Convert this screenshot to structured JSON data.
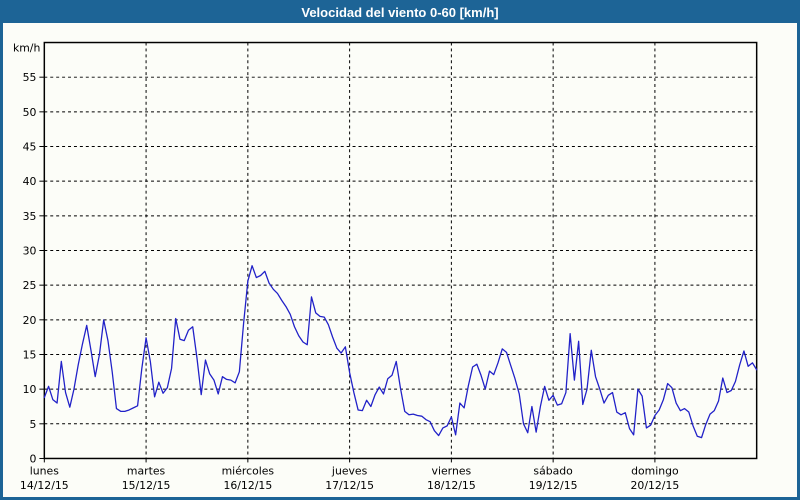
{
  "header": {
    "title": "Velocidad del viento 0-60 [km/h]"
  },
  "colors": {
    "title_bar": "#1d6496",
    "title_text": "#ffffff",
    "background": "#fcfdf8",
    "plot_border": "#000000",
    "grid": "#000000",
    "label_text": "#000000",
    "series_line": "#2121c8"
  },
  "chart_data": {
    "type": "line",
    "title": "Velocidad del viento 0-60 [km/h]",
    "ylabel": "km/h",
    "xlabel": "",
    "ylim": [
      0,
      60
    ],
    "xlim_hours": [
      0,
      168
    ],
    "grid": "dashed",
    "legend_position": "none",
    "y_ticks": [
      0,
      5,
      10,
      15,
      20,
      25,
      30,
      35,
      40,
      45,
      50,
      55
    ],
    "x_days": [
      {
        "name": "lunes",
        "date": "14/12/15"
      },
      {
        "name": "martes",
        "date": "15/12/15"
      },
      {
        "name": "miércoles",
        "date": "16/12/15"
      },
      {
        "name": "jueves",
        "date": "17/12/15"
      },
      {
        "name": "viernes",
        "date": "18/12/15"
      },
      {
        "name": "sábado",
        "date": "19/12/15"
      },
      {
        "name": "domingo",
        "date": "20/12/15"
      }
    ],
    "series": [
      {
        "name": "velocidad del viento",
        "unit": "km/h",
        "step_hours": 1,
        "values": [
          8.8,
          10.4,
          8.5,
          8.0,
          14.0,
          9.5,
          7.4,
          10.0,
          13.5,
          16.5,
          19.2,
          15.6,
          11.8,
          15.0,
          20.0,
          17.0,
          12.5,
          7.2,
          6.8,
          6.8,
          7.0,
          7.3,
          7.6,
          13.0,
          17.4,
          14.0,
          8.9,
          11.0,
          9.4,
          10.2,
          13.0,
          20.2,
          17.2,
          17.0,
          18.5,
          19.0,
          14.5,
          9.2,
          14.2,
          12.2,
          11.3,
          9.3,
          11.8,
          11.4,
          11.3,
          10.9,
          12.5,
          19.5,
          25.6,
          27.8,
          26.1,
          26.4,
          27.0,
          25.3,
          24.4,
          23.8,
          22.8,
          21.9,
          20.8,
          19.0,
          17.7,
          16.8,
          16.4,
          23.3,
          21.0,
          20.5,
          20.4,
          19.3,
          17.5,
          15.9,
          15.2,
          16.1,
          12.4,
          9.5,
          7.0,
          6.9,
          8.4,
          7.5,
          9.2,
          10.3,
          9.3,
          11.5,
          12.0,
          14.0,
          10.1,
          6.8,
          6.3,
          6.4,
          6.2,
          6.1,
          5.6,
          5.3,
          4.0,
          3.3,
          4.4,
          4.7,
          6.0,
          3.4,
          8.0,
          7.3,
          10.5,
          13.2,
          13.6,
          12.0,
          10.0,
          12.6,
          12.1,
          13.8,
          15.8,
          15.3,
          13.4,
          11.5,
          9.3,
          5.0,
          3.7,
          7.5,
          3.8,
          7.5,
          10.4,
          8.4,
          9.1,
          7.7,
          7.9,
          9.5,
          18.0,
          11.3,
          16.9,
          7.8,
          10.0,
          15.6,
          11.8,
          10.0,
          8.0,
          9.1,
          9.5,
          6.7,
          6.3,
          6.6,
          4.3,
          3.4,
          10.0,
          9.0,
          4.4,
          4.8,
          6.2,
          7.0,
          8.5,
          10.8,
          10.2,
          8.0,
          6.9,
          7.2,
          6.7,
          4.7,
          3.2,
          3.0,
          4.9,
          6.4,
          6.9,
          8.3,
          11.6,
          9.5,
          9.8,
          11.1,
          13.5,
          15.5,
          13.3,
          13.8,
          12.8
        ]
      }
    ]
  }
}
